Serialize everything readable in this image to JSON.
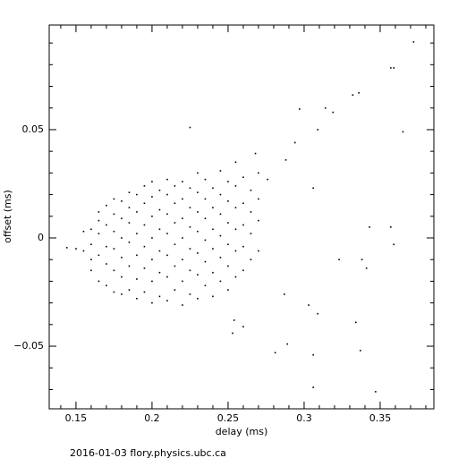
{
  "chart_data": {
    "type": "scatter",
    "x_label": "delay (ms)",
    "y_label": "offset (ms)",
    "footer": "2016-01-03 flory.physics.ubc.ca",
    "color": "#000000",
    "xlim": [
      0.1324,
      0.3853
    ],
    "ylim": [
      -0.0789,
      0.0983
    ],
    "xticks": [
      0.15,
      0.2,
      0.25,
      0.3,
      0.35
    ],
    "yticks": [
      {
        "value": -0.05,
        "label": "−0.05"
      },
      0,
      0.05
    ],
    "xminorticks": [
      0.14,
      0.16,
      0.17,
      0.18,
      0.19,
      0.21,
      0.22,
      0.23,
      0.24,
      0.26,
      0.27,
      0.28,
      0.29,
      0.31,
      0.32,
      0.33,
      0.34,
      0.36,
      0.37,
      0.38
    ],
    "yminorticks": [
      -0.07,
      -0.06,
      -0.04,
      -0.03,
      -0.02,
      -0.01,
      0.01,
      0.02,
      0.03,
      0.04,
      0.06,
      0.07,
      0.08,
      0.09
    ],
    "x": [
      0.15,
      0.155,
      0.155,
      0.16,
      0.16,
      0.16,
      0.16,
      0.165,
      0.165,
      0.165,
      0.165,
      0.165,
      0.17,
      0.17,
      0.17,
      0.17,
      0.17,
      0.175,
      0.175,
      0.175,
      0.175,
      0.175,
      0.175,
      0.18,
      0.18,
      0.18,
      0.18,
      0.18,
      0.18,
      0.185,
      0.185,
      0.185,
      0.185,
      0.185,
      0.185,
      0.19,
      0.19,
      0.19,
      0.19,
      0.19,
      0.19,
      0.195,
      0.195,
      0.195,
      0.195,
      0.195,
      0.195,
      0.2,
      0.2,
      0.2,
      0.2,
      0.2,
      0.2,
      0.2,
      0.205,
      0.205,
      0.205,
      0.205,
      0.205,
      0.205,
      0.21,
      0.21,
      0.21,
      0.21,
      0.21,
      0.21,
      0.21,
      0.215,
      0.215,
      0.215,
      0.215,
      0.215,
      0.215,
      0.22,
      0.22,
      0.22,
      0.22,
      0.22,
      0.22,
      0.22,
      0.225,
      0.225,
      0.225,
      0.225,
      0.225,
      0.225,
      0.23,
      0.23,
      0.23,
      0.23,
      0.23,
      0.23,
      0.23,
      0.235,
      0.235,
      0.235,
      0.235,
      0.235,
      0.235,
      0.24,
      0.24,
      0.24,
      0.24,
      0.24,
      0.24,
      0.245,
      0.245,
      0.245,
      0.245,
      0.245,
      0.245,
      0.25,
      0.25,
      0.25,
      0.25,
      0.25,
      0.25,
      0.255,
      0.255,
      0.255,
      0.255,
      0.255,
      0.255,
      0.26,
      0.26,
      0.26,
      0.26,
      0.26,
      0.265,
      0.265,
      0.265,
      0.265,
      0.27,
      0.27,
      0.27,
      0.27,
      0.372,
      0.357,
      0.359,
      0.336,
      0.332,
      0.314,
      0.297,
      0.365,
      0.319,
      0.309,
      0.225,
      0.343,
      0.357,
      0.359,
      0.338,
      0.323,
      0.341,
      0.334,
      0.337,
      0.306,
      0.289,
      0.281,
      0.306,
      0.347,
      0.253,
      0.26,
      0.309,
      0.303,
      0.287,
      0.144,
      0.294,
      0.288,
      0.276,
      0.268,
      0.306,
      0.254
    ],
    "values": [
      -0.005,
      -0.006,
      0.003,
      -0.015,
      -0.01,
      -0.003,
      0.004,
      -0.02,
      -0.008,
      0.002,
      0.008,
      0.012,
      -0.022,
      -0.012,
      -0.004,
      0.006,
      0.015,
      -0.025,
      -0.015,
      -0.005,
      0.003,
      0.011,
      0.018,
      -0.026,
      -0.018,
      -0.009,
      0,
      0.009,
      0.017,
      -0.024,
      -0.013,
      -0.002,
      0.007,
      0.014,
      0.021,
      -0.028,
      -0.019,
      -0.008,
      0.002,
      0.012,
      0.02,
      -0.025,
      -0.014,
      -0.004,
      0.006,
      0.016,
      0.024,
      -0.03,
      -0.02,
      -0.01,
      0,
      0.01,
      0.019,
      0.026,
      -0.027,
      -0.016,
      -0.006,
      0.004,
      0.013,
      0.022,
      -0.029,
      -0.018,
      -0.008,
      0.002,
      0.011,
      0.02,
      0.027,
      -0.024,
      -0.013,
      -0.003,
      0.007,
      0.016,
      0.024,
      -0.031,
      -0.02,
      -0.01,
      0,
      0.009,
      0.018,
      0.026,
      -0.026,
      -0.015,
      -0.005,
      0.005,
      0.014,
      0.023,
      -0.028,
      -0.017,
      -0.007,
      0.003,
      0.012,
      0.021,
      0.03,
      -0.022,
      -0.011,
      -0.001,
      0.009,
      0.018,
      0.027,
      -0.027,
      -0.016,
      -0.005,
      0.004,
      0.014,
      0.023,
      -0.02,
      -0.009,
      0.001,
      0.011,
      0.02,
      0.031,
      -0.024,
      -0.013,
      -0.003,
      0.007,
      0.017,
      0.026,
      -0.018,
      -0.006,
      0.004,
      0.014,
      0.024,
      0.035,
      -0.015,
      -0.004,
      0.006,
      0.016,
      0.028,
      -0.01,
      0.002,
      0.012,
      0.022,
      -0.006,
      0.008,
      0.018,
      0.03,
      0.0905,
      0.0785,
      0.0785,
      0.067,
      0.066,
      0.06,
      0.0595,
      0.049,
      0.058,
      0.05,
      0.051,
      0.005,
      0.005,
      -0.003,
      -0.01,
      -0.01,
      -0.014,
      -0.039,
      -0.052,
      -0.054,
      -0.049,
      -0.053,
      -0.069,
      -0.071,
      -0.044,
      -0.041,
      -0.035,
      -0.031,
      -0.026,
      -0.0045,
      0.044,
      0.036,
      0.027,
      0.039,
      0.023,
      -0.038
    ]
  }
}
